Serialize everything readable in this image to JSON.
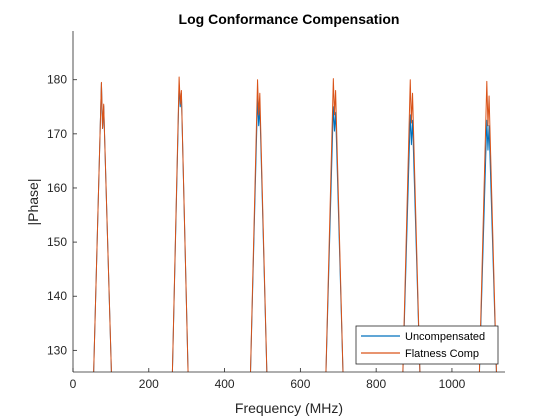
{
  "chart_data": {
    "type": "line",
    "title": "Log Conformance Compensation",
    "xlabel": "Frequency (MHz)",
    "ylabel": "|Phase|",
    "xlim": [
      0,
      1140
    ],
    "ylim": [
      126,
      189
    ],
    "xticks": [
      0,
      200,
      400,
      600,
      800,
      1000
    ],
    "yticks": [
      130,
      140,
      150,
      160,
      170,
      180
    ],
    "grid": false,
    "legend_position": "bottom-right",
    "series": [
      {
        "name": "Uncompensated",
        "color": "#0072BD",
        "peaks": [
          {
            "center": 78,
            "peak": 179.4,
            "dip": 171.0,
            "secondary": 175.2,
            "half_width": 25
          },
          {
            "center": 283,
            "peak": 179.0,
            "dip": 175.0,
            "secondary": 177.5,
            "half_width": 22
          },
          {
            "center": 490,
            "peak": 176.5,
            "dip": 171.5,
            "secondary": 175.0,
            "half_width": 23
          },
          {
            "center": 690,
            "peak": 175.0,
            "dip": 170.5,
            "secondary": 174.0,
            "half_width": 24
          },
          {
            "center": 893,
            "peak": 173.5,
            "dip": 168.0,
            "secondary": 172.5,
            "half_width": 24
          },
          {
            "center": 1095,
            "peak": 172.5,
            "dip": 167.0,
            "secondary": 171.5,
            "half_width": 24
          }
        ]
      },
      {
        "name": "Flatness Comp",
        "color": "#D95319",
        "peaks": [
          {
            "center": 78,
            "peak": 179.5,
            "dip": 171.0,
            "secondary": 175.5,
            "half_width": 25
          },
          {
            "center": 283,
            "peak": 180.5,
            "dip": 175.5,
            "secondary": 178.0,
            "half_width": 22
          },
          {
            "center": 490,
            "peak": 180.0,
            "dip": 173.5,
            "secondary": 177.5,
            "half_width": 23
          },
          {
            "center": 690,
            "peak": 180.2,
            "dip": 173.5,
            "secondary": 178.0,
            "half_width": 24
          },
          {
            "center": 893,
            "peak": 180.0,
            "dip": 172.0,
            "secondary": 177.5,
            "half_width": 24
          },
          {
            "center": 1095,
            "peak": 179.7,
            "dip": 171.5,
            "secondary": 177.0,
            "half_width": 24
          }
        ]
      }
    ]
  }
}
